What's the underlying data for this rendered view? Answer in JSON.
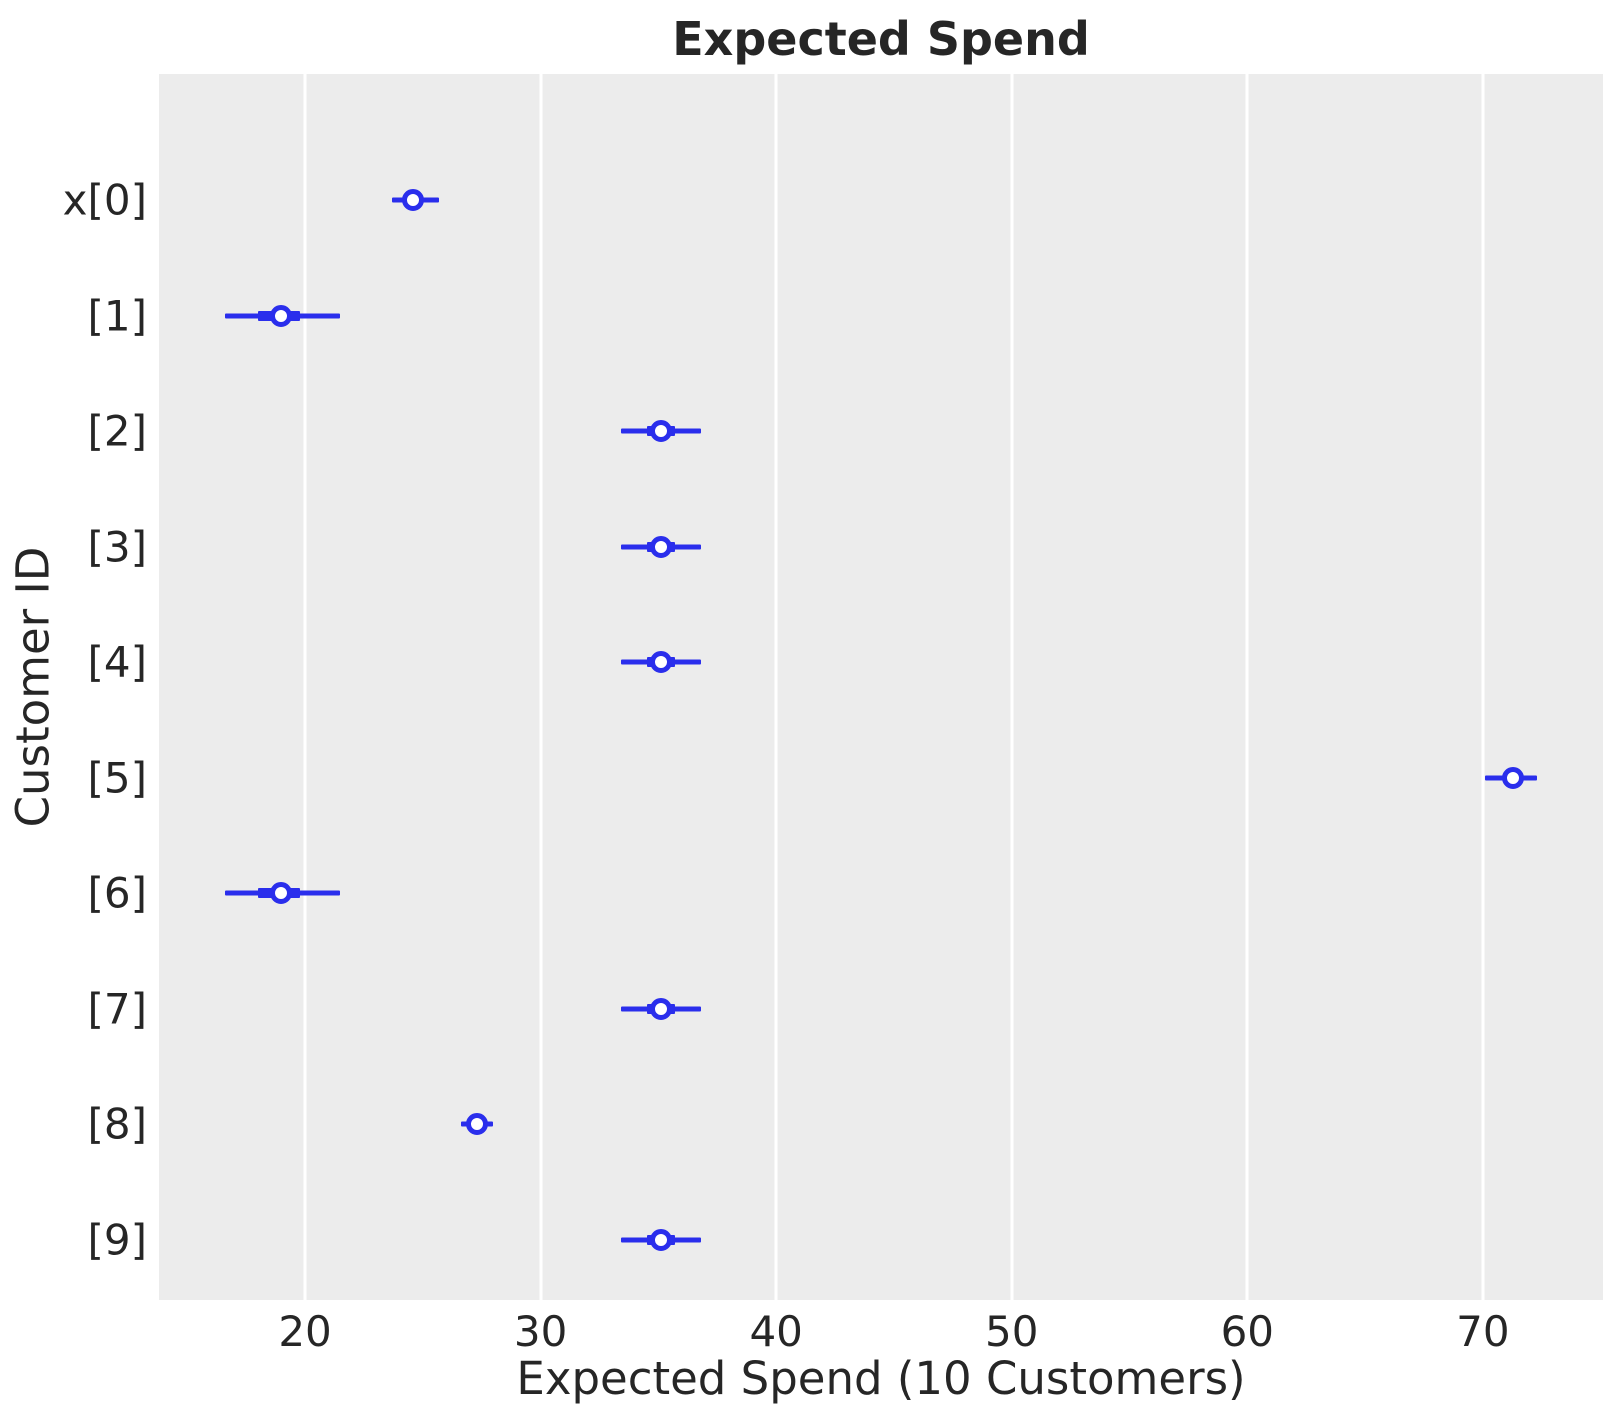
{
  "title": "Expected Spend",
  "colors": {
    "marker_blue": "#2a2eec",
    "plot_background": "#ececec",
    "gridline": "#ffffff",
    "text": "#262626",
    "figure_background": "#ffffff"
  },
  "chart_data": {
    "type": "forest",
    "title": "Expected Spend",
    "xlabel": "Expected Spend (10 Customers)",
    "ylabel": "Customer ID",
    "xlim": [
      13.8,
      75.1
    ],
    "xticks": [
      20,
      30,
      40,
      50,
      60,
      70
    ],
    "grid": "vertical white gridlines at each x tick",
    "legend": "none",
    "marker_style": "open circle point estimate, thick quartile bar, thin credible-interval line",
    "rows": [
      {
        "label": "x[0]",
        "point": 24.6,
        "interval": [
          23.7,
          25.7
        ],
        "quartile": [
          24.2,
          25.0
        ]
      },
      {
        "label": "[1]",
        "point": 19.0,
        "interval": [
          16.6,
          21.5
        ],
        "quartile": [
          18.0,
          19.8
        ]
      },
      {
        "label": "[2]",
        "point": 35.1,
        "interval": [
          33.4,
          36.8
        ],
        "quartile": [
          34.5,
          35.7
        ]
      },
      {
        "label": "[3]",
        "point": 35.1,
        "interval": [
          33.4,
          36.8
        ],
        "quartile": [
          34.5,
          35.7
        ]
      },
      {
        "label": "[4]",
        "point": 35.1,
        "interval": [
          33.4,
          36.8
        ],
        "quartile": [
          34.5,
          35.7
        ]
      },
      {
        "label": "[5]",
        "point": 71.3,
        "interval": [
          70.1,
          72.3
        ],
        "quartile": [
          70.9,
          71.7
        ]
      },
      {
        "label": "[6]",
        "point": 19.0,
        "interval": [
          16.6,
          21.5
        ],
        "quartile": [
          18.0,
          19.8
        ]
      },
      {
        "label": "[7]",
        "point": 35.1,
        "interval": [
          33.4,
          36.8
        ],
        "quartile": [
          34.5,
          35.7
        ]
      },
      {
        "label": "[8]",
        "point": 27.3,
        "interval": [
          26.6,
          28.0
        ],
        "quartile": [
          26.9,
          27.7
        ]
      },
      {
        "label": "[9]",
        "point": 35.1,
        "interval": [
          33.4,
          36.8
        ],
        "quartile": [
          34.5,
          35.7
        ]
      }
    ]
  }
}
